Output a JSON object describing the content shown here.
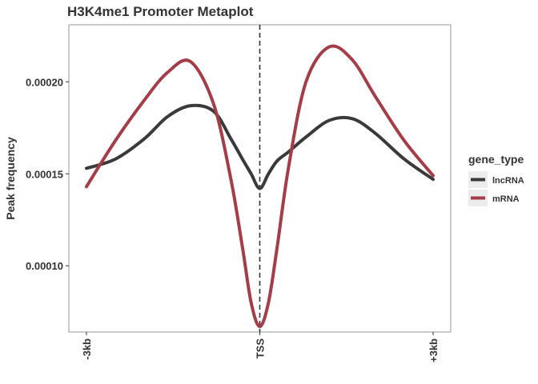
{
  "chart_data": {
    "type": "line",
    "title": "H3K4me1 Promoter Metaplot",
    "xlabel": "",
    "ylabel": "Peak frequency",
    "x_tick_labels": [
      "-3kb",
      "TSS",
      "+3kb"
    ],
    "x_tick_positions": [
      -3000,
      0,
      3000
    ],
    "xlim": [
      -3000,
      3000
    ],
    "ylim": [
      6.4e-05,
      0.000231
    ],
    "y_ticks": [
      0.0001,
      0.00015,
      0.0002
    ],
    "y_tick_labels": [
      "0.00010",
      "0.00015",
      "0.00020"
    ],
    "reference_line": {
      "x": 0,
      "label": "TSS",
      "style": "dashed"
    },
    "grid": false,
    "legend": {
      "title": "gene_type",
      "position": "right"
    },
    "x": [
      -3000,
      -2500,
      -2000,
      -1600,
      -1200,
      -800,
      -500,
      -300,
      -150,
      0,
      150,
      300,
      500,
      800,
      1200,
      1600,
      2000,
      2500,
      3000
    ],
    "series": [
      {
        "name": "lncRNA",
        "color": "#3a3a3a",
        "values": [
          0.000153,
          0.000158,
          0.000169,
          0.000181,
          0.000187,
          0.000184,
          0.000169,
          0.000158,
          0.00015,
          0.000142,
          0.00015,
          0.000157,
          0.000162,
          0.00017,
          0.000179,
          0.00018,
          0.000172,
          0.000158,
          0.000147
        ]
      },
      {
        "name": "mRNA",
        "color": "#a53d48",
        "values": [
          0.000143,
          0.000168,
          0.00019,
          0.000205,
          0.000211,
          0.000188,
          0.000147,
          0.00011,
          8e-05,
          6.7e-05,
          8e-05,
          0.00011,
          0.000154,
          0.0002,
          0.000219,
          0.000212,
          0.000192,
          0.000168,
          0.000149
        ]
      }
    ]
  }
}
